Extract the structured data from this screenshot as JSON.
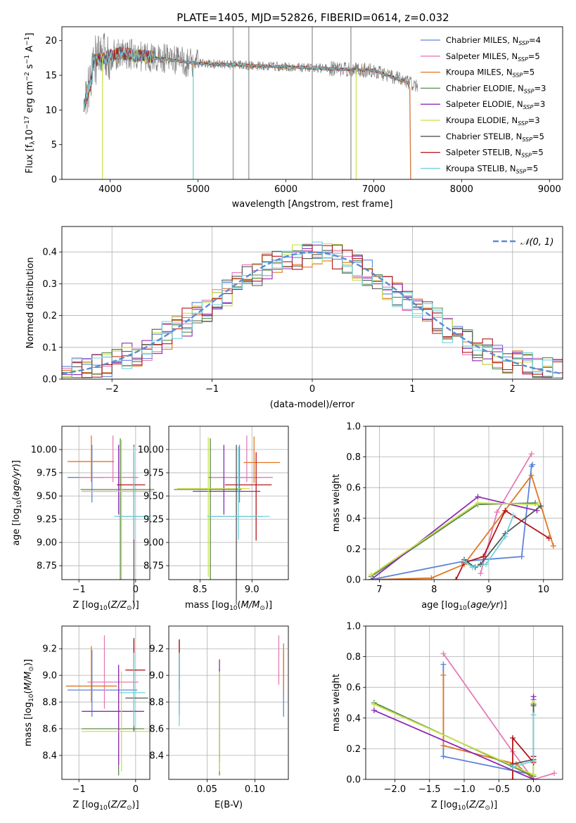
{
  "figure_title": "PLATE=1405, MJD=52826, FIBERID=0614, z=0.032",
  "colors": {
    "chabrier_miles": "#5b84d9",
    "salpeter_miles": "#e67bb6",
    "kroupa_miles": "#e07722",
    "chabrier_elodie": "#5a8a4e",
    "salpeter_elodie": "#8e2bb4",
    "kroupa_elodie": "#c9e04a",
    "chabrier_stelib": "#555555",
    "salpeter_stelib": "#b3161b",
    "kroupa_stelib": "#6fd3df",
    "data": "#808080",
    "normal": "#5b8bd6",
    "grid": "#b0b0b0"
  },
  "legend": [
    "Chabrier MILES, N_SSP=4",
    "Salpeter MILES, N_SSP=5",
    "Kroupa MILES, N_SSP=5",
    "Chabrier ELODIE, N_SSP=3",
    "Salpeter ELODIE, N_SSP=3",
    "Kroupa ELODIE, N_SSP=3",
    "Chabrier STELIB, N_SSP=5",
    "Salpeter STELIB, N_SSP=5",
    "Kroupa STELIB, N_SSP=5"
  ],
  "chart_data": [
    {
      "id": "spectrum",
      "type": "line",
      "title": "PLATE=1405, MJD=52826, FIBERID=0614, z=0.032",
      "xlabel": "wavelength [Angstrom, rest frame]",
      "ylabel": "Flux [f_λ 10^-17 erg cm^-2 s^-1 A^-1]",
      "xlim": [
        3450,
        9150
      ],
      "ylim": [
        0,
        22
      ],
      "xticks": [
        4000,
        5000,
        6000,
        7000,
        8000,
        9000
      ],
      "yticks": [
        0,
        5,
        10,
        15,
        20
      ],
      "grid": false,
      "legend_position": "top-right",
      "data_range_x": [
        3700,
        7500
      ],
      "model_end": {
        "x": 7410,
        "y": 13.2
      },
      "model_start": {
        "x": 3700,
        "y": 10.5
      },
      "absorption_features": [
        3912,
        4945,
        6800
      ],
      "sky_lines": [
        5400,
        5577,
        6300,
        6740
      ]
    },
    {
      "id": "residual_histogram",
      "type": "histogram",
      "xlabel": "(data-model)/error",
      "ylabel": "Normed distribution",
      "xlim": [
        -2.5,
        2.5
      ],
      "ylim": [
        0,
        0.48
      ],
      "xticks": [
        -2,
        -1,
        0,
        1,
        2
      ],
      "yticks": [
        0.0,
        0.1,
        0.2,
        0.3,
        0.4
      ],
      "grid": true,
      "legend_position": "top-right",
      "legend_label": "𝒩(0, 1)",
      "bin_width": 0.1,
      "bin_start": -2.5,
      "reference_curve": "normal(0,1)"
    },
    {
      "id": "age_vs_Z",
      "type": "scatter",
      "xlabel": "Z [log10(Z/Z☉)]",
      "ylabel": "age  [log10(age/yr)]",
      "xlim": [
        -1.3,
        0.25
      ],
      "ylim": [
        8.6,
        10.25
      ],
      "xticks": [
        -1,
        0
      ],
      "yticks": [
        8.75,
        9.0,
        9.25,
        9.5,
        9.75,
        10.0
      ],
      "grid": true,
      "points": [
        {
          "model": "chabrier_miles",
          "x": -0.77,
          "y": 9.7,
          "xerr": [
            0.43,
            0.2
          ],
          "yerr": [
            0.27,
            0.35
          ]
        },
        {
          "model": "salpeter_miles",
          "x": -0.4,
          "y": 9.7,
          "xerr": [
            0.6,
            0.45
          ],
          "yerr": [
            0.05,
            0.45
          ]
        },
        {
          "model": "kroupa_miles",
          "x": -0.78,
          "y": 9.87,
          "xerr": [
            0.42,
            0.4
          ],
          "yerr": [
            0.22,
            0.28
          ]
        },
        {
          "model": "chabrier_elodie",
          "x": -0.27,
          "y": 9.57,
          "xerr": [
            0.7,
            0.6
          ],
          "yerr": [
            0.97,
            0.55
          ]
        },
        {
          "model": "salpeter_elodie",
          "x": -0.3,
          "y": 9.55,
          "xerr": [
            0.65,
            0.6
          ],
          "yerr": [
            0.25,
            0.5
          ]
        },
        {
          "model": "kroupa_elodie",
          "x": -0.25,
          "y": 9.55,
          "xerr": [
            0.7,
            0.55
          ],
          "yerr": [
            0.95,
            0.55
          ]
        },
        {
          "model": "chabrier_stelib",
          "x": -0.03,
          "y": 9.28,
          "xerr": [
            0.3,
            0.27
          ],
          "yerr": [
            0.95,
            0.77
          ]
        },
        {
          "model": "salpeter_stelib",
          "x": -0.03,
          "y": 9.62,
          "xerr": [
            0.3,
            0.2
          ],
          "yerr": [
            0.6,
            0.35
          ]
        },
        {
          "model": "kroupa_stelib",
          "x": -0.03,
          "y": 9.28,
          "xerr": [
            0.35,
            0.3
          ],
          "yerr": [
            0.25,
            0.75
          ]
        }
      ]
    },
    {
      "id": "age_vs_mass",
      "type": "scatter",
      "xlabel": "mass [log10(M/M☉)]",
      "ylabel": "",
      "xlim": [
        8.2,
        9.35
      ],
      "ylim": [
        8.6,
        10.25
      ],
      "xticks": [
        8.5,
        9.0
      ],
      "yticks": [
        8.75,
        9.0,
        9.25,
        9.5,
        9.75,
        10.0
      ],
      "grid": true,
      "points": [
        {
          "model": "chabrier_miles",
          "x": 8.88,
          "y": 9.7,
          "xerr": [
            0.3,
            0.2
          ],
          "yerr": [
            0.27,
            0.35
          ]
        },
        {
          "model": "salpeter_miles",
          "x": 8.95,
          "y": 9.7,
          "xerr": [
            0.35,
            0.25
          ],
          "yerr": [
            0.05,
            0.45
          ]
        },
        {
          "model": "kroupa_miles",
          "x": 9.02,
          "y": 9.86,
          "xerr": [
            0.1,
            0.25
          ],
          "yerr": [
            0.22,
            0.28
          ]
        },
        {
          "model": "chabrier_elodie",
          "x": 8.6,
          "y": 9.57,
          "xerr": [
            0.35,
            0.3
          ],
          "yerr": [
            0.97,
            0.55
          ]
        },
        {
          "model": "salpeter_elodie",
          "x": 8.73,
          "y": 9.55,
          "xerr": [
            0.3,
            0.35
          ],
          "yerr": [
            0.25,
            0.5
          ]
        },
        {
          "model": "kroupa_elodie",
          "x": 8.58,
          "y": 9.58,
          "xerr": [
            0.3,
            0.4
          ],
          "yerr": [
            0.95,
            0.55
          ]
        },
        {
          "model": "chabrier_stelib",
          "x": 8.85,
          "y": 9.28,
          "xerr": [
            0.25,
            0.25
          ],
          "yerr": [
            0.95,
            0.77
          ]
        },
        {
          "model": "salpeter_stelib",
          "x": 9.04,
          "y": 9.62,
          "xerr": [
            0.3,
            0.15
          ],
          "yerr": [
            0.6,
            0.35
          ]
        },
        {
          "model": "kroupa_stelib",
          "x": 8.87,
          "y": 9.28,
          "xerr": [
            0.3,
            0.3
          ],
          "yerr": [
            0.25,
            0.75
          ]
        }
      ]
    },
    {
      "id": "mass_weight_vs_age",
      "type": "line",
      "xlabel": "age  [log10(age/yr)]",
      "ylabel": "mass weight",
      "xlim": [
        6.75,
        10.35
      ],
      "ylim": [
        0,
        1.0
      ],
      "xticks": [
        7,
        8,
        9,
        10
      ],
      "yticks": [
        0.0,
        0.2,
        0.4,
        0.6,
        0.8,
        1.0
      ],
      "grid": true,
      "series": [
        {
          "model": "chabrier_miles",
          "x": [
            6.85,
            8.55,
            9.6,
            9.78,
            9.8
          ],
          "y": [
            0.0,
            0.12,
            0.15,
            0.74,
            0.75
          ]
        },
        {
          "model": "salpeter_miles",
          "x": [
            8.85,
            9.15,
            9.78
          ],
          "y": [
            0.04,
            0.44,
            0.82
          ]
        },
        {
          "model": "kroupa_miles",
          "x": [
            6.85,
            7.95,
            8.55,
            9.78,
            10.18
          ],
          "y": [
            0.0,
            0.01,
            0.1,
            0.68,
            0.22
          ]
        },
        {
          "model": "chabrier_elodie",
          "x": [
            6.85,
            8.8,
            9.85
          ],
          "y": [
            0.02,
            0.49,
            0.5
          ]
        },
        {
          "model": "salpeter_elodie",
          "x": [
            6.85,
            8.8,
            9.88
          ],
          "y": [
            0.0,
            0.54,
            0.45
          ]
        },
        {
          "model": "kroupa_elodie",
          "x": [
            6.85,
            8.8,
            9.9
          ],
          "y": [
            0.03,
            0.5,
            0.49
          ]
        },
        {
          "model": "chabrier_stelib",
          "x": [
            8.55,
            8.75,
            8.85,
            9.3,
            9.95
          ],
          "y": [
            0.13,
            0.08,
            0.1,
            0.3,
            0.48
          ]
        },
        {
          "model": "salpeter_stelib",
          "x": [
            8.4,
            8.55,
            8.9,
            9.3,
            10.1
          ],
          "y": [
            0.0,
            0.11,
            0.15,
            0.45,
            0.27
          ]
        },
        {
          "model": "kroupa_stelib",
          "x": [
            8.55,
            8.7,
            8.95,
            9.3,
            9.45
          ],
          "y": [
            0.12,
            0.08,
            0.1,
            0.28,
            0.42
          ]
        }
      ]
    },
    {
      "id": "mass_vs_Z",
      "type": "scatter",
      "xlabel": "Z [log10(Z/Z☉)]",
      "ylabel": "mass [log10(M/M☉)]",
      "xlim": [
        -1.3,
        0.25
      ],
      "ylim": [
        8.22,
        9.37
      ],
      "xticks": [
        -1,
        0
      ],
      "yticks": [
        8.4,
        8.6,
        8.8,
        9.0,
        9.2
      ],
      "grid": true,
      "points": [
        {
          "model": "chabrier_miles",
          "x": -0.77,
          "y": 8.89,
          "xerr": [
            0.43,
            0.8
          ],
          "yerr": [
            0.2,
            0.3
          ]
        },
        {
          "model": "salpeter_miles",
          "x": -0.55,
          "y": 8.95,
          "xerr": [
            0.3,
            0.6
          ],
          "yerr": [
            0.2,
            0.35
          ]
        },
        {
          "model": "kroupa_miles",
          "x": -0.78,
          "y": 8.92,
          "xerr": [
            0.45,
            0.45
          ],
          "yerr": [
            0.12,
            0.3
          ]
        },
        {
          "model": "chabrier_elodie",
          "x": -0.3,
          "y": 8.6,
          "xerr": [
            0.65,
            0.45
          ],
          "yerr": [
            0.35,
            0.45
          ]
        },
        {
          "model": "salpeter_elodie",
          "x": -0.3,
          "y": 8.73,
          "xerr": [
            0.65,
            0.45
          ],
          "yerr": [
            0.4,
            0.35
          ]
        },
        {
          "model": "kroupa_elodie",
          "x": -0.25,
          "y": 8.58,
          "xerr": [
            0.7,
            0.5
          ],
          "yerr": [
            0.3,
            0.45
          ]
        },
        {
          "model": "chabrier_stelib",
          "x": -0.03,
          "y": 8.83,
          "xerr": [
            0.15,
            0.25
          ],
          "yerr": [
            0.25,
            0.45
          ]
        },
        {
          "model": "salpeter_stelib",
          "x": -0.03,
          "y": 9.04,
          "xerr": [
            0.15,
            0.2
          ],
          "yerr": [
            0.15,
            0.23
          ]
        },
        {
          "model": "kroupa_stelib",
          "x": -0.03,
          "y": 8.87,
          "xerr": [
            0.25,
            0.2
          ],
          "yerr": [
            0.25,
            0.3
          ]
        }
      ]
    },
    {
      "id": "mass_vs_EBV",
      "type": "scatter",
      "xlabel": "E(B-V)",
      "ylabel": "",
      "xlim": [
        0.01,
        0.135
      ],
      "ylim": [
        8.22,
        9.37
      ],
      "xticks": [
        0.05,
        0.1
      ],
      "yticks": [
        8.4,
        8.6,
        8.8,
        9.0,
        9.2
      ],
      "grid": true,
      "points": [
        {
          "model": "chabrier_miles",
          "x": 0.13,
          "y": 8.89,
          "yerr": [
            0.2,
            0.3
          ]
        },
        {
          "model": "salpeter_miles",
          "x": 0.125,
          "y": 9.1,
          "yerr": [
            0.17,
            0.2
          ]
        },
        {
          "model": "kroupa_miles",
          "x": 0.13,
          "y": 8.97,
          "yerr": [
            0.1,
            0.27
          ]
        },
        {
          "model": "chabrier_elodie",
          "x": 0.063,
          "y": 8.6,
          "yerr": [
            0.35,
            0.45
          ]
        },
        {
          "model": "salpeter_elodie",
          "x": 0.063,
          "y": 8.95,
          "yerr": [
            0.6,
            0.17
          ]
        },
        {
          "model": "kroupa_elodie",
          "x": 0.063,
          "y": 8.58,
          "yerr": [
            0.3,
            0.45
          ]
        },
        {
          "model": "chabrier_stelib",
          "x": 0.021,
          "y": 9.05,
          "yerr": [
            0.35,
            0.22
          ]
        },
        {
          "model": "salpeter_stelib",
          "x": 0.021,
          "y": 9.04,
          "yerr": [
            0.15,
            0.23
          ]
        },
        {
          "model": "kroupa_stelib",
          "x": 0.021,
          "y": 8.87,
          "yerr": [
            0.25,
            0.3
          ]
        }
      ]
    },
    {
      "id": "mass_weight_vs_Z",
      "type": "line",
      "xlabel": "Z [log10(Z/Z☉)]",
      "ylabel": "mass weight",
      "xlim": [
        -2.42,
        0.42
      ],
      "ylim": [
        0,
        1.0
      ],
      "xticks": [
        -2.0,
        -1.5,
        -1.0,
        -0.5,
        0.0
      ],
      "yticks": [
        0.0,
        0.2,
        0.4,
        0.6,
        0.8,
        1.0
      ],
      "grid": true,
      "series": [
        {
          "model": "chabrier_miles",
          "x": [
            -1.3,
            -1.3,
            0.0,
            0.0
          ],
          "y": [
            0.75,
            0.15,
            0.03,
            0.52
          ]
        },
        {
          "model": "salpeter_miles",
          "x": [
            -1.3,
            -0.3,
            0.0,
            0.3
          ],
          "y": [
            0.82,
            0.18,
            0.0,
            0.04
          ]
        },
        {
          "model": "kroupa_miles",
          "x": [
            -1.3,
            -1.3,
            -0.25,
            0.0,
            0.0
          ],
          "y": [
            0.68,
            0.22,
            0.1,
            0.0,
            0.12
          ]
        },
        {
          "model": "chabrier_elodie",
          "x": [
            -2.3,
            0.0,
            0.0
          ],
          "y": [
            0.5,
            0.02,
            0.49
          ]
        },
        {
          "model": "salpeter_elodie",
          "x": [
            -2.3,
            0.0,
            0.0
          ],
          "y": [
            0.45,
            0.0,
            0.54
          ]
        },
        {
          "model": "kroupa_elodie",
          "x": [
            -2.3,
            0.0,
            0.0
          ],
          "y": [
            0.49,
            0.03,
            0.5
          ]
        },
        {
          "model": "chabrier_stelib",
          "x": [
            -0.3,
            0.0,
            0.0
          ],
          "y": [
            0.1,
            0.13,
            0.48
          ]
        },
        {
          "model": "salpeter_stelib",
          "x": [
            -0.3,
            -0.3,
            0.0,
            0.0
          ],
          "y": [
            0.0,
            0.27,
            0.11,
            0.15
          ]
        },
        {
          "model": "kroupa_stelib",
          "x": [
            -0.3,
            0.0,
            0.0
          ],
          "y": [
            0.08,
            0.12,
            0.42
          ]
        }
      ]
    }
  ]
}
